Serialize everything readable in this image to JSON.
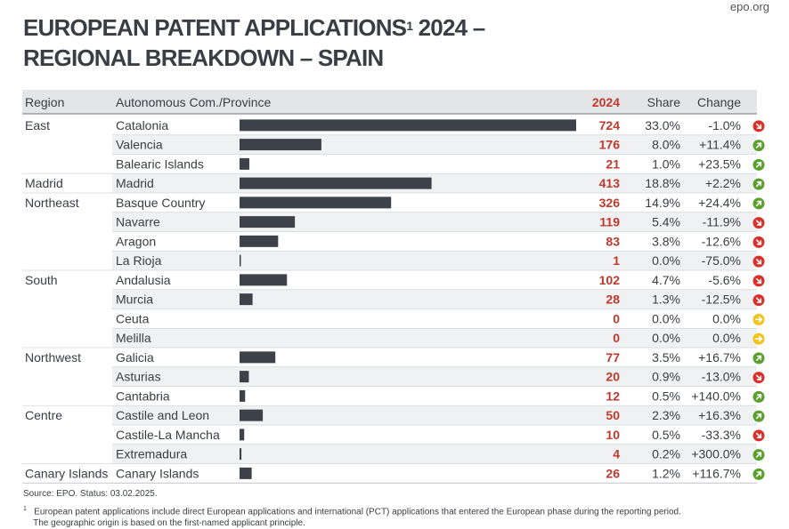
{
  "source_tag": "epo.org",
  "title": {
    "line1_before_sup": "EUROPEAN PATENT APPLICATIONS",
    "sup": "1",
    "line1_after_sup": " 2024 –",
    "line2": "REGIONAL BREAKDOWN – SPAIN"
  },
  "headers": {
    "region": "Region",
    "province": "Autonomous Com./Province",
    "value": "2024",
    "share": "Share",
    "change": "Change"
  },
  "colors": {
    "bar": "#3d4149",
    "value_text": "#c0392b",
    "header_bg": "#e4e5e7",
    "stripe_bg": "#f0f1f2",
    "up": "#5aa02c",
    "down": "#d9302a",
    "flat": "#f2c31b"
  },
  "chart_data": {
    "type": "bar",
    "orientation": "horizontal",
    "regions": [
      {
        "label": "East",
        "first_row": 0
      },
      {
        "label": "Madrid",
        "first_row": 3
      },
      {
        "label": "Northeast",
        "first_row": 4
      },
      {
        "label": "South",
        "first_row": 8
      },
      {
        "label": "Northwest",
        "first_row": 12
      },
      {
        "label": "Centre",
        "first_row": 15
      },
      {
        "label": "Canary Islands",
        "first_row": 18
      }
    ],
    "rows": [
      {
        "province": "Catalonia",
        "value": 724,
        "share": "33.0%",
        "change": "-1.0%",
        "trend": "down"
      },
      {
        "province": "Valencia",
        "value": 176,
        "share": "8.0%",
        "change": "+11.4%",
        "trend": "up"
      },
      {
        "province": "Balearic Islands",
        "value": 21,
        "share": "1.0%",
        "change": "+23.5%",
        "trend": "up"
      },
      {
        "province": "Madrid",
        "value": 413,
        "share": "18.8%",
        "change": "+2.2%",
        "trend": "up"
      },
      {
        "province": "Basque Country",
        "value": 326,
        "share": "14.9%",
        "change": "+24.4%",
        "trend": "up"
      },
      {
        "province": "Navarre",
        "value": 119,
        "share": "5.4%",
        "change": "-11.9%",
        "trend": "down"
      },
      {
        "province": "Aragon",
        "value": 83,
        "share": "3.8%",
        "change": "-12.6%",
        "trend": "down"
      },
      {
        "province": "La Rioja",
        "value": 1,
        "share": "0.0%",
        "change": "-75.0%",
        "trend": "down"
      },
      {
        "province": "Andalusia",
        "value": 102,
        "share": "4.7%",
        "change": "-5.6%",
        "trend": "down"
      },
      {
        "province": "Murcia",
        "value": 28,
        "share": "1.3%",
        "change": "-12.5%",
        "trend": "down"
      },
      {
        "province": "Ceuta",
        "value": 0,
        "share": "0.0%",
        "change": "0.0%",
        "trend": "flat"
      },
      {
        "province": "Melilla",
        "value": 0,
        "share": "0.0%",
        "change": "0.0%",
        "trend": "flat"
      },
      {
        "province": "Galicia",
        "value": 77,
        "share": "3.5%",
        "change": "+16.7%",
        "trend": "up"
      },
      {
        "province": "Asturias",
        "value": 20,
        "share": "0.9%",
        "change": "-13.0%",
        "trend": "down"
      },
      {
        "province": "Cantabria",
        "value": 12,
        "share": "0.5%",
        "change": "+140.0%",
        "trend": "up"
      },
      {
        "province": "Castile and Leon",
        "value": 50,
        "share": "2.3%",
        "change": "+16.3%",
        "trend": "up"
      },
      {
        "province": "Castile-La Mancha",
        "value": 10,
        "share": "0.5%",
        "change": "-33.3%",
        "trend": "down"
      },
      {
        "province": "Extremadura",
        "value": 4,
        "share": "0.2%",
        "change": "+300.0%",
        "trend": "up"
      },
      {
        "province": "Canary Islands",
        "value": 26,
        "share": "1.2%",
        "change": "+116.7%",
        "trend": "up"
      }
    ],
    "xlim": [
      0,
      724
    ]
  },
  "footnotes": {
    "source": "Source: EPO. Status: 03.02.2025.",
    "note_marker": "1",
    "note_line1": "European patent applications include direct European applications and international (PCT) applications that entered the European phase during the reporting period.",
    "note_line2": "The geographic origin is based on the first-named applicant principle."
  }
}
